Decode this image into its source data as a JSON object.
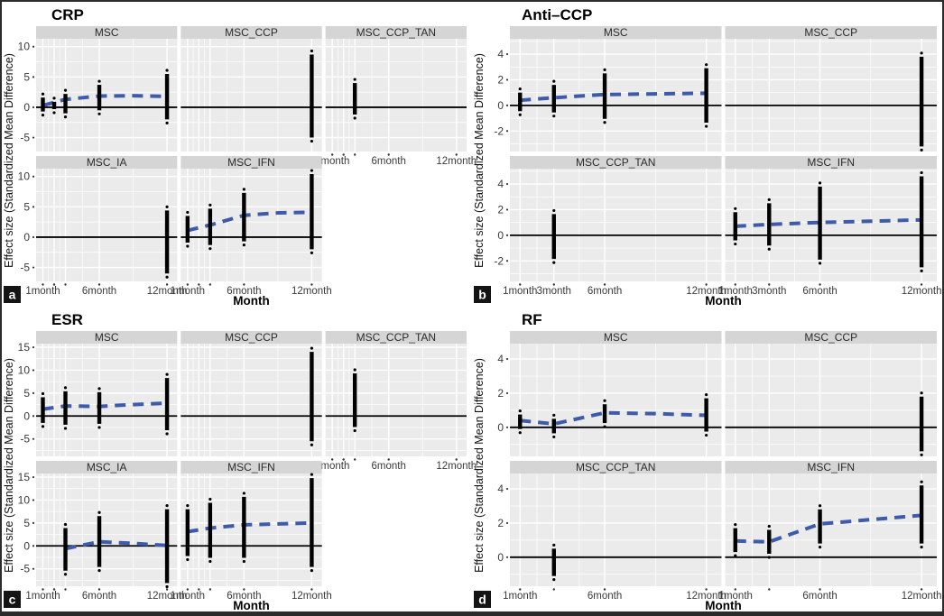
{
  "figure": {
    "kind": "faceted forest plots of standardized mean differences over time",
    "x_axis_title": "Month",
    "y_axis_title": "Effect size (Standardized Mean Difference)"
  },
  "style": {
    "panel_bg": "#ebebeb",
    "strip_bg": "#d5d5d5",
    "grid_color": "#ffffff",
    "bar_color": "#000000",
    "trend_color": "#3e5ba9",
    "zero_line_color": "#000000",
    "axis_text_color": "#3a3a3a",
    "title_color": "#000000",
    "corner_bg": "#141414",
    "corner_text": "#ffffff",
    "border_color": "#2b2b2b"
  },
  "chart_data": [
    {
      "id": "a",
      "corner_label": "a",
      "title": "CRP",
      "type": "line",
      "mark": "errorbar_with_dashed_trend",
      "xlabel": "Month",
      "ylabel": "Effect size (Standardized Mean Difference)",
      "xlim": [
        0.4,
        12.9
      ],
      "ylim": [
        -7.3,
        11.3
      ],
      "yticks": [
        10,
        5,
        0,
        -5
      ],
      "yminor": [
        7.5,
        2.5,
        -2.5
      ],
      "xticks": [
        {
          "month": 1,
          "label": "1month"
        },
        {
          "month": 2,
          "label": ""
        },
        {
          "month": 3,
          "label": ""
        },
        {
          "month": 6,
          "label": "6month"
        },
        {
          "month": 12,
          "label": "12month"
        }
      ],
      "xminor": [
        1.5,
        2.5,
        4.5,
        9
      ],
      "ncols": 3,
      "facets": [
        {
          "label": "MSC",
          "row": 0,
          "col": 0,
          "x_axis": false,
          "intervals": [
            [
              1,
              -0.7,
              1.6
            ],
            [
              2,
              -0.3,
              0.9
            ],
            [
              3,
              -1.0,
              2.2
            ],
            [
              6,
              -0.5,
              3.7
            ],
            [
              12,
              -2.0,
              5.5
            ]
          ],
          "trend": [
            [
              1,
              0.3
            ],
            [
              3,
              1.3
            ],
            [
              6,
              1.85
            ],
            [
              9,
              1.9
            ],
            [
              12,
              1.8
            ]
          ]
        },
        {
          "label": "MSC_CCP",
          "row": 0,
          "col": 1,
          "x_axis": false,
          "intervals": [
            [
              12,
              -5.0,
              8.7
            ]
          ],
          "trend": []
        },
        {
          "label": "MSC_CCP_TAN",
          "row": 0,
          "col": 2,
          "x_axis": true,
          "intervals": [
            [
              3,
              -1.2,
              4.0
            ]
          ],
          "trend": []
        },
        {
          "label": "MSC_IA",
          "row": 1,
          "col": 0,
          "x_axis": true,
          "intervals": [
            [
              12,
              -6.0,
              4.4
            ]
          ],
          "trend": []
        },
        {
          "label": "MSC_IFN",
          "row": 1,
          "col": 1,
          "x_axis": true,
          "intervals": [
            [
              1,
              -0.9,
              3.5
            ],
            [
              3,
              -1.3,
              4.7
            ],
            [
              6,
              -0.7,
              7.3
            ],
            [
              12,
              -2.0,
              10.4
            ]
          ],
          "trend": [
            [
              1,
              1.1
            ],
            [
              3,
              2.0
            ],
            [
              6,
              3.6
            ],
            [
              9,
              4.0
            ],
            [
              12,
              4.1
            ]
          ]
        }
      ]
    },
    {
      "id": "b",
      "corner_label": "b",
      "title": "Anti–CCP",
      "type": "line",
      "mark": "errorbar_with_dashed_trend",
      "xlabel": "Month",
      "ylabel": "Effect size (Standardized Mean Difference)",
      "xlim": [
        0.4,
        12.9
      ],
      "ylim": [
        -3.6,
        5.2
      ],
      "yticks": [
        4,
        2,
        0,
        -2
      ],
      "yminor": [
        5,
        3,
        1,
        -1,
        -3
      ],
      "xticks": [
        {
          "month": 1,
          "label": "1month"
        },
        {
          "month": 3,
          "label": "3month"
        },
        {
          "month": 6,
          "label": "6month"
        },
        {
          "month": 12,
          "label": "12month"
        }
      ],
      "xminor": [
        2,
        4.5,
        9
      ],
      "ncols": 2,
      "facets": [
        {
          "label": "MSC",
          "row": 0,
          "col": 0,
          "x_axis": false,
          "intervals": [
            [
              1,
              -0.45,
              1.0
            ],
            [
              3,
              -0.55,
              1.6
            ],
            [
              6,
              -1.05,
              2.5
            ],
            [
              12,
              -1.35,
              2.9
            ]
          ],
          "trend": [
            [
              1,
              0.4
            ],
            [
              3,
              0.6
            ],
            [
              6,
              0.85
            ],
            [
              9,
              0.9
            ],
            [
              12,
              0.95
            ]
          ]
        },
        {
          "label": "MSC_CCP",
          "row": 0,
          "col": 1,
          "x_axis": false,
          "intervals": [
            [
              12,
              -3.2,
              3.8
            ]
          ],
          "trend": []
        },
        {
          "label": "MSC_CCP_TAN",
          "row": 1,
          "col": 0,
          "x_axis": true,
          "intervals": [
            [
              3,
              -1.85,
              1.65
            ]
          ],
          "trend": []
        },
        {
          "label": "MSC_IFN",
          "row": 1,
          "col": 1,
          "x_axis": true,
          "intervals": [
            [
              1,
              -0.4,
              1.8
            ],
            [
              3,
              -0.8,
              2.5
            ],
            [
              6,
              -1.9,
              3.8
            ],
            [
              12,
              -2.5,
              4.6
            ]
          ],
          "trend": [
            [
              1,
              0.7
            ],
            [
              3,
              0.85
            ],
            [
              6,
              1.0
            ],
            [
              9,
              1.1
            ],
            [
              12,
              1.2
            ]
          ]
        }
      ]
    },
    {
      "id": "c",
      "corner_label": "c",
      "title": "ESR",
      "type": "line",
      "mark": "errorbar_with_dashed_trend",
      "xlabel": "Month",
      "ylabel": "Effect size (Standardized Mean Difference)",
      "xlim": [
        0.4,
        12.9
      ],
      "ylim": [
        -8.8,
        15.8
      ],
      "yticks": [
        15,
        10,
        5,
        0,
        -5
      ],
      "yminor": [
        12.5,
        7.5,
        2.5,
        -2.5,
        -7.5
      ],
      "xticks": [
        {
          "month": 1,
          "label": "1month"
        },
        {
          "month": 2,
          "label": ""
        },
        {
          "month": 3,
          "label": ""
        },
        {
          "month": 6,
          "label": "6month"
        },
        {
          "month": 12,
          "label": "12month"
        }
      ],
      "xminor": [
        1.5,
        2.5,
        4.5,
        9
      ],
      "ncols": 3,
      "facets": [
        {
          "label": "MSC",
          "row": 0,
          "col": 0,
          "x_axis": false,
          "intervals": [
            [
              1,
              -1.5,
              4.1
            ],
            [
              3,
              -1.9,
              5.4
            ],
            [
              6,
              -1.7,
              5.2
            ],
            [
              12,
              -3.1,
              8.3
            ]
          ],
          "trend": [
            [
              1,
              1.5
            ],
            [
              3,
              2.2
            ],
            [
              6,
              2.1
            ],
            [
              9,
              2.5
            ],
            [
              12,
              2.8
            ]
          ]
        },
        {
          "label": "MSC_CCP",
          "row": 0,
          "col": 1,
          "x_axis": false,
          "intervals": [
            [
              12,
              -5.5,
              14.0
            ]
          ],
          "trend": []
        },
        {
          "label": "MSC_CCP_TAN",
          "row": 0,
          "col": 2,
          "x_axis": true,
          "intervals": [
            [
              3,
              -2.4,
              9.3
            ]
          ],
          "trend": []
        },
        {
          "label": "MSC_IA",
          "row": 1,
          "col": 0,
          "x_axis": true,
          "intervals": [
            [
              3,
              -5.4,
              3.9
            ],
            [
              6,
              -4.6,
              6.5
            ],
            [
              12,
              -8.1,
              8.0
            ]
          ],
          "trend": [
            [
              3,
              -0.6
            ],
            [
              6,
              0.9
            ],
            [
              9,
              0.55
            ],
            [
              12,
              0.1
            ]
          ]
        },
        {
          "label": "MSC_IFN",
          "row": 1,
          "col": 1,
          "x_axis": true,
          "intervals": [
            [
              1,
              -2.2,
              8.0
            ],
            [
              3,
              -2.6,
              9.4
            ],
            [
              6,
              -2.6,
              10.7
            ],
            [
              12,
              -4.6,
              14.8
            ]
          ],
          "trend": [
            [
              1,
              3.1
            ],
            [
              3,
              3.9
            ],
            [
              6,
              4.6
            ],
            [
              9,
              4.8
            ],
            [
              12,
              5.0
            ]
          ]
        }
      ]
    },
    {
      "id": "d",
      "corner_label": "d",
      "title": "RF",
      "type": "line",
      "mark": "errorbar_with_dashed_trend",
      "xlabel": "Month",
      "ylabel": "Effect size (Standardized Mean Difference)",
      "xlim": [
        0.4,
        12.9
      ],
      "ylim": [
        -1.7,
        4.9
      ],
      "yticks": [
        4,
        2,
        0
      ],
      "yminor": [
        3,
        1,
        -1
      ],
      "xticks": [
        {
          "month": 1,
          "label": "1month"
        },
        {
          "month": 3,
          "label": ""
        },
        {
          "month": 6,
          "label": "6month"
        },
        {
          "month": 12,
          "label": "12month"
        }
      ],
      "xminor": [
        2,
        4.5,
        9
      ],
      "ncols": 2,
      "facets": [
        {
          "label": "MSC",
          "row": 0,
          "col": 0,
          "x_axis": false,
          "intervals": [
            [
              1,
              -0.1,
              0.75
            ],
            [
              3,
              -0.35,
              0.5
            ],
            [
              6,
              0.25,
              1.35
            ],
            [
              12,
              -0.25,
              1.7
            ]
          ],
          "trend": [
            [
              1,
              0.4
            ],
            [
              3,
              0.2
            ],
            [
              6,
              0.85
            ],
            [
              9,
              0.8
            ],
            [
              12,
              0.7
            ]
          ]
        },
        {
          "label": "MSC_CCP",
          "row": 0,
          "col": 1,
          "x_axis": false,
          "intervals": [
            [
              12,
              -1.4,
              1.8
            ]
          ],
          "trend": []
        },
        {
          "label": "MSC_CCP_TAN",
          "row": 1,
          "col": 0,
          "x_axis": true,
          "intervals": [
            [
              3,
              -1.1,
              0.5
            ]
          ],
          "trend": []
        },
        {
          "label": "MSC_IFN",
          "row": 1,
          "col": 1,
          "x_axis": true,
          "intervals": [
            [
              1,
              0.3,
              1.7
            ],
            [
              3,
              0.2,
              1.6
            ],
            [
              6,
              0.8,
              2.8
            ],
            [
              12,
              0.8,
              4.2
            ]
          ],
          "trend": [
            [
              1,
              0.95
            ],
            [
              3,
              0.9
            ],
            [
              6,
              1.95
            ],
            [
              9,
              2.2
            ],
            [
              12,
              2.45
            ]
          ]
        }
      ]
    }
  ]
}
